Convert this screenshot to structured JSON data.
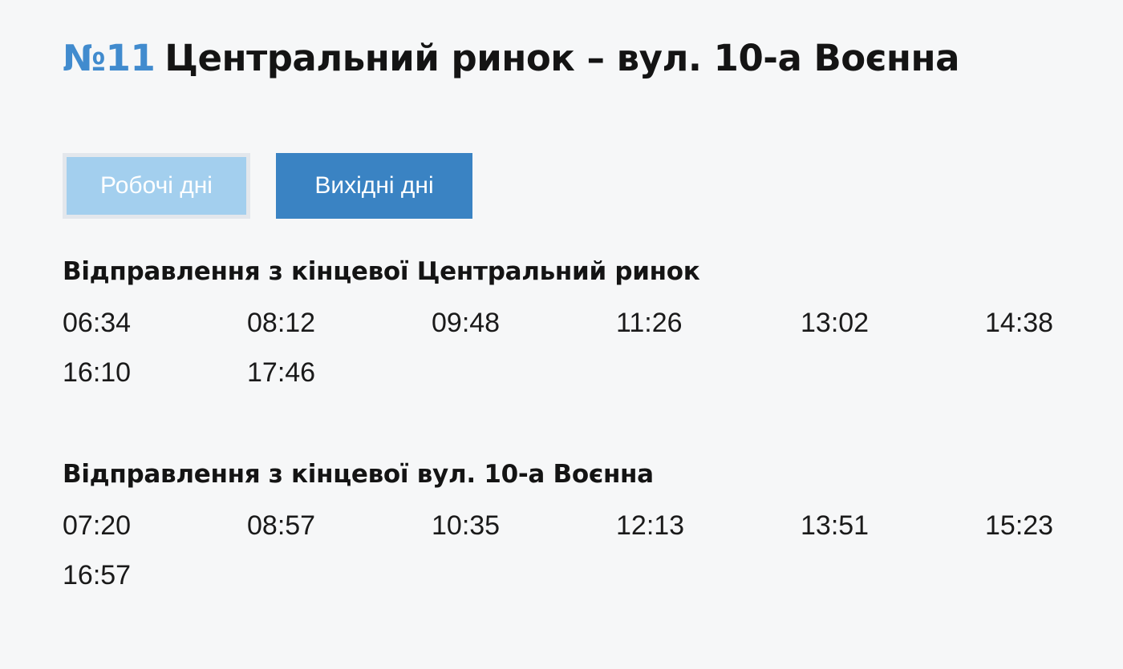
{
  "route": {
    "number": "№11",
    "title": "Центральний ринок – вул. 10-а Воєнна"
  },
  "tabs": [
    {
      "label": "Робочі дні",
      "state": "inactive"
    },
    {
      "label": "Вихідні дні",
      "state": "active"
    }
  ],
  "sections": [
    {
      "heading": "Відправлення з кінцевої Центральний ринок",
      "times": [
        "06:34",
        "08:12",
        "09:48",
        "11:26",
        "13:02",
        "14:38",
        "16:10",
        "17:46"
      ]
    },
    {
      "heading": "Відправлення з кінцевої вул. 10-а Воєнна",
      "times": [
        "07:20",
        "08:57",
        "10:35",
        "12:13",
        "13:51",
        "15:23",
        "16:57"
      ]
    }
  ],
  "colors": {
    "background": "#f6f7f8",
    "accent_blue": "#418bce",
    "tab_active_bg": "#3a83c3",
    "tab_inactive_bg": "#a3cfee",
    "tab_inactive_border": "#e3e7ec",
    "text": "#141414"
  }
}
